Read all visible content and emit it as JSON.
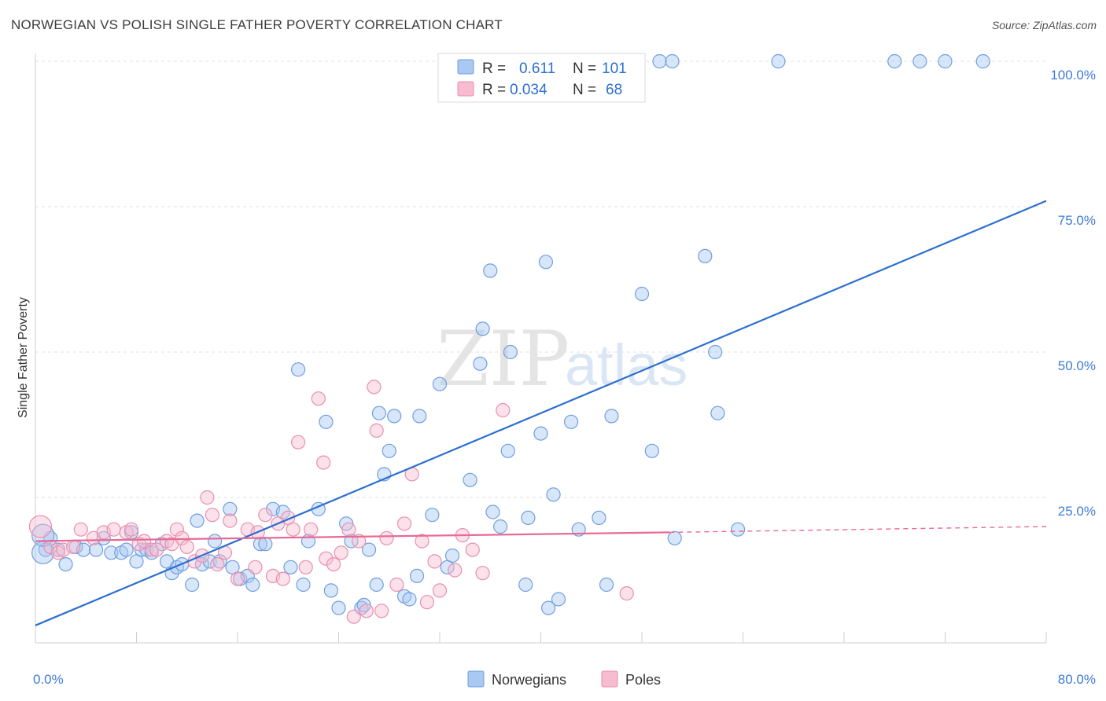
{
  "title": "NORWEGIAN VS POLISH SINGLE FATHER POVERTY CORRELATION CHART",
  "source": "Source: ZipAtlas.com",
  "watermark": {
    "zip": "ZIP",
    "atlas": "atlas"
  },
  "chart_data": {
    "type": "scatter",
    "title": "NORWEGIAN VS POLISH SINGLE FATHER POVERTY CORRELATION CHART",
    "xlabel": "",
    "ylabel": "Single Father Poverty",
    "xlim": [
      0,
      80
    ],
    "ylim": [
      0,
      100
    ],
    "x_tick_labels": [
      "0.0%",
      "80.0%"
    ],
    "y_ticks": [
      25,
      50,
      75,
      100
    ],
    "y_tick_labels": [
      "25.0%",
      "50.0%",
      "75.0%",
      "100.0%"
    ],
    "grid": true,
    "legend_position": "top-center",
    "legend": [
      {
        "name": "Norwegians",
        "r_label": "R =",
        "r": "0.611",
        "n_label": "N =",
        "n": "101",
        "color": "#a9c8f2",
        "stroke": "#6f9fe0"
      },
      {
        "name": "Poles",
        "r_label": "R =",
        "r": "0.034",
        "n_label": "N =",
        "n": "68",
        "color": "#f7bcd0",
        "stroke": "#ea8fae"
      }
    ],
    "series": [
      {
        "name": "Norwegians",
        "color": "#a9c8f2",
        "stroke": "#6f9fe0",
        "trend": {
          "color": "#2b6fd0",
          "x0": 0,
          "y0": 3,
          "x1": 80,
          "y1": 76,
          "dashed_from": null
        },
        "points": [
          [
            0.8,
            16
          ],
          [
            1.2,
            18
          ],
          [
            1.8,
            16
          ],
          [
            2.4,
            13.5
          ],
          [
            3.2,
            16.5
          ],
          [
            3.8,
            16
          ],
          [
            4.8,
            16
          ],
          [
            5.4,
            18
          ],
          [
            6,
            15.5
          ],
          [
            6.8,
            15.5
          ],
          [
            7.2,
            16
          ],
          [
            7.6,
            19
          ],
          [
            8,
            14
          ],
          [
            8.4,
            16
          ],
          [
            8.8,
            16
          ],
          [
            9.2,
            15.5
          ],
          [
            10,
            17
          ],
          [
            10.4,
            14
          ],
          [
            10.8,
            12
          ],
          [
            11.2,
            13
          ],
          [
            11.6,
            13.5
          ],
          [
            12.4,
            10
          ],
          [
            12.8,
            21
          ],
          [
            13.2,
            13.5
          ],
          [
            13.8,
            14
          ],
          [
            14.2,
            17.5
          ],
          [
            14.6,
            14
          ],
          [
            15.4,
            23
          ],
          [
            15.6,
            13
          ],
          [
            16.2,
            11
          ],
          [
            16.8,
            11.5
          ],
          [
            17.2,
            10
          ],
          [
            17.8,
            17
          ],
          [
            18.2,
            17
          ],
          [
            18.8,
            23
          ],
          [
            19.6,
            22.5
          ],
          [
            20.2,
            13
          ],
          [
            20.8,
            47
          ],
          [
            21.2,
            10
          ],
          [
            21.6,
            17.5
          ],
          [
            22.4,
            23
          ],
          [
            23,
            38
          ],
          [
            23.4,
            9
          ],
          [
            24,
            6
          ],
          [
            24.6,
            20.5
          ],
          [
            25,
            17.5
          ],
          [
            25.8,
            6
          ],
          [
            26,
            6.5
          ],
          [
            26.4,
            16
          ],
          [
            27,
            10
          ],
          [
            27.2,
            39.5
          ],
          [
            27.6,
            29
          ],
          [
            28,
            33
          ],
          [
            28.4,
            39
          ],
          [
            29.2,
            8
          ],
          [
            29.6,
            7.5
          ],
          [
            30.2,
            11.5
          ],
          [
            30.4,
            39
          ],
          [
            31.4,
            22
          ],
          [
            32,
            44.5
          ],
          [
            32.6,
            13
          ],
          [
            33,
            15
          ],
          [
            34.4,
            28
          ],
          [
            35.2,
            48
          ],
          [
            35.4,
            54
          ],
          [
            36,
            64
          ],
          [
            36.2,
            22.5
          ],
          [
            36.8,
            20
          ],
          [
            37.4,
            33
          ],
          [
            37.6,
            50
          ],
          [
            38.8,
            10
          ],
          [
            39,
            21.5
          ],
          [
            40,
            36
          ],
          [
            40.4,
            65.5
          ],
          [
            40.6,
            6
          ],
          [
            41,
            25.5
          ],
          [
            41.4,
            7.5
          ],
          [
            42.4,
            38
          ],
          [
            43,
            19.5
          ],
          [
            44.6,
            21.5
          ],
          [
            45.2,
            10
          ],
          [
            45.6,
            39
          ],
          [
            48,
            60
          ],
          [
            48.8,
            33
          ],
          [
            49.4,
            100
          ],
          [
            50.4,
            100
          ],
          [
            50.6,
            18
          ],
          [
            53,
            66.5
          ],
          [
            53.8,
            50
          ],
          [
            54,
            39.5
          ],
          [
            55.6,
            19.5
          ],
          [
            58.8,
            100
          ],
          [
            68,
            100
          ],
          [
            70,
            100
          ],
          [
            72,
            100
          ],
          [
            75,
            100
          ]
        ],
        "big_points": [
          [
            0.6,
            15.5
          ],
          [
            0.6,
            18.5
          ]
        ]
      },
      {
        "name": "Poles",
        "color": "#f7bcd0",
        "stroke": "#ea8fae",
        "trend": {
          "color": "#e86a96",
          "x0": 0,
          "y0": 17.5,
          "x1": 50.2,
          "y1": 19,
          "dashed_from": 50.2,
          "x_end": 80,
          "y_end": 20
        },
        "points": [
          [
            1.2,
            16.5
          ],
          [
            1.8,
            15.5
          ],
          [
            2.2,
            16
          ],
          [
            3,
            16.5
          ],
          [
            3.6,
            19.5
          ],
          [
            4.6,
            18
          ],
          [
            5.4,
            19
          ],
          [
            6.2,
            19.5
          ],
          [
            7.2,
            19
          ],
          [
            7.6,
            19.5
          ],
          [
            8.2,
            17
          ],
          [
            8.6,
            17.5
          ],
          [
            9.2,
            16
          ],
          [
            9.6,
            16
          ],
          [
            10.4,
            17.5
          ],
          [
            10.8,
            17
          ],
          [
            11.2,
            19.5
          ],
          [
            11.6,
            18
          ],
          [
            12,
            16.5
          ],
          [
            12.6,
            14
          ],
          [
            13.2,
            15
          ],
          [
            13.6,
            25
          ],
          [
            14,
            22
          ],
          [
            14.4,
            13.5
          ],
          [
            15,
            15.5
          ],
          [
            15.4,
            21
          ],
          [
            16,
            11
          ],
          [
            16.8,
            19.5
          ],
          [
            17.4,
            13
          ],
          [
            17.6,
            19
          ],
          [
            18.2,
            22
          ],
          [
            18.8,
            11.5
          ],
          [
            19.2,
            20.5
          ],
          [
            19.6,
            11
          ],
          [
            20,
            21.5
          ],
          [
            20.4,
            19.5
          ],
          [
            20.8,
            34.5
          ],
          [
            21.4,
            13
          ],
          [
            21.8,
            19.5
          ],
          [
            22.4,
            42
          ],
          [
            22.8,
            31
          ],
          [
            23,
            14.5
          ],
          [
            23.6,
            13.5
          ],
          [
            24.2,
            15.5
          ],
          [
            24.8,
            19.5
          ],
          [
            25.2,
            4.5
          ],
          [
            25.6,
            17.5
          ],
          [
            26.2,
            5.5
          ],
          [
            26.8,
            44
          ],
          [
            27,
            36.5
          ],
          [
            27.4,
            5.5
          ],
          [
            27.8,
            18
          ],
          [
            28.6,
            10
          ],
          [
            29.2,
            20.5
          ],
          [
            29.8,
            29
          ],
          [
            30.6,
            17.5
          ],
          [
            31,
            7
          ],
          [
            31.6,
            14
          ],
          [
            32,
            9
          ],
          [
            33.2,
            12.5
          ],
          [
            33.8,
            18.5
          ],
          [
            34.6,
            16
          ],
          [
            35.4,
            12
          ],
          [
            37,
            40
          ],
          [
            46.8,
            8.5
          ]
        ],
        "big_points": [
          [
            0.4,
            20
          ]
        ]
      }
    ]
  }
}
